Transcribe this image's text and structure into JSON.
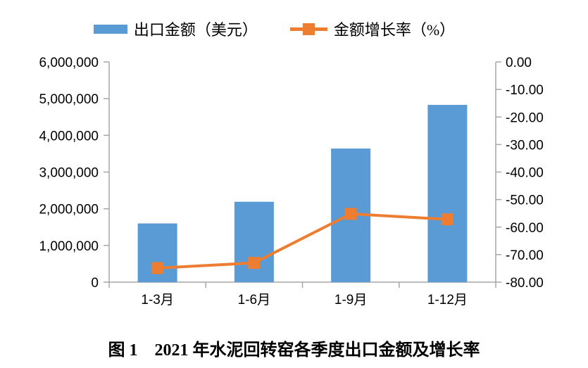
{
  "legend": {
    "bar_label": "出口金额（美元）",
    "line_label": "金额增长率（%）"
  },
  "caption": "图 1　2021 年水泥回转窑各季度出口金额及增长率",
  "colors": {
    "bar": "#5B9BD5",
    "line": "#ED7D31",
    "axis": "#A6A6A6",
    "text": "#000000"
  },
  "chart_data": {
    "type": "bar",
    "subtype": "bar+line combo, dual axis",
    "title": "图 1　2021 年水泥回转窑各季度出口金额及增长率",
    "grid": false,
    "legend_position": "top",
    "categories": [
      "1-3月",
      "1-6月",
      "1-9月",
      "1-12月"
    ],
    "series": [
      {
        "name": "出口金额（美元）",
        "type": "bar",
        "axis": "left",
        "color": "#5B9BD5",
        "values": [
          1600000,
          2190000,
          3640000,
          4830000
        ]
      },
      {
        "name": "金额增长率（%）",
        "type": "line",
        "axis": "right",
        "color": "#ED7D31",
        "marker": "square",
        "values": [
          -74.9,
          -73.0,
          -55.2,
          -57.2
        ]
      }
    ],
    "left_axis": {
      "min": 0,
      "max": 6000000,
      "step": 1000000,
      "tick_labels": [
        "6,000,000",
        "5,000,000",
        "4,000,000",
        "3,000,000",
        "2,000,000",
        "1,000,000",
        "0"
      ]
    },
    "right_axis": {
      "min": -80,
      "max": 0,
      "step": 10,
      "tick_labels": [
        "0.00",
        "-10.00",
        "-20.00",
        "-30.00",
        "-40.00",
        "-50.00",
        "-60.00",
        "-70.00",
        "-80.00"
      ]
    }
  }
}
